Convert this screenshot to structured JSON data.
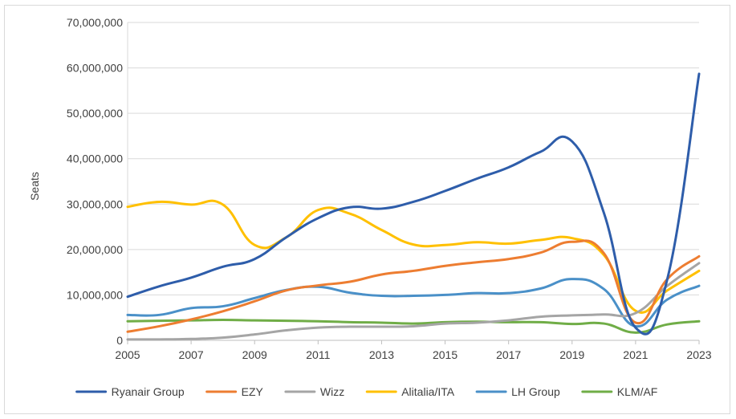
{
  "chart_data": {
    "type": "line",
    "title": "",
    "xlabel": "",
    "ylabel": "Seats",
    "x_tick_labels": [
      "2005",
      "2007",
      "2009",
      "2011",
      "2013",
      "2015",
      "2017",
      "2019",
      "2021",
      "2023"
    ],
    "y_tick_labels": [
      "0",
      "10,000,000",
      "20,000,000",
      "30,000,000",
      "40,000,000",
      "50,000,000",
      "60,000,000",
      "70,000,000"
    ],
    "xlim": [
      2005,
      2023
    ],
    "ylim": [
      0,
      70000000
    ],
    "grid": "horizontal",
    "legend_position": "bottom",
    "x": [
      2005,
      2006,
      2007,
      2008,
      2009,
      2010,
      2011,
      2012,
      2013,
      2014,
      2015,
      2016,
      2017,
      2018,
      2019,
      2020,
      2021,
      2022,
      2023
    ],
    "series": [
      {
        "name": "Ryanair Group",
        "color": "#2E5DAA",
        "values": [
          9600000,
          11900000,
          13800000,
          16200000,
          17900000,
          22700000,
          26900000,
          29300000,
          29000000,
          30500000,
          32900000,
          35600000,
          38100000,
          41500000,
          43800000,
          28100000,
          2800000,
          13500000,
          58700000
        ]
      },
      {
        "name": "EZY",
        "color": "#ED7D31",
        "values": [
          1900000,
          3100000,
          4600000,
          6400000,
          8600000,
          11000000,
          12100000,
          12900000,
          14500000,
          15300000,
          16400000,
          17200000,
          17900000,
          19300000,
          21700000,
          19200000,
          3900000,
          13500000,
          18500000
        ]
      },
      {
        "name": "Wizz",
        "color": "#A5A5A5",
        "values": [
          200000,
          200000,
          300000,
          600000,
          1300000,
          2200000,
          2800000,
          3000000,
          3000000,
          3100000,
          3700000,
          3900000,
          4400000,
          5200000,
          5500000,
          5700000,
          6000000,
          12000000,
          17000000
        ]
      },
      {
        "name": "Alitalia/ITA",
        "color": "#FFC000",
        "values": [
          29400000,
          30500000,
          29900000,
          29900000,
          21000000,
          22700000,
          28700000,
          27900000,
          24300000,
          21100000,
          21000000,
          21600000,
          21300000,
          22100000,
          22500000,
          18800000,
          6500000,
          11000000,
          15300000
        ]
      },
      {
        "name": "LH Group",
        "color": "#4A90C8",
        "values": [
          5600000,
          5600000,
          7100000,
          7500000,
          9300000,
          11100000,
          11800000,
          10500000,
          9800000,
          9800000,
          10000000,
          10400000,
          10400000,
          11400000,
          13500000,
          11300000,
          3100000,
          9000000,
          12000000
        ]
      },
      {
        "name": "KLM/AF",
        "color": "#70AD47",
        "values": [
          4200000,
          4300000,
          4400000,
          4500000,
          4400000,
          4300000,
          4200000,
          4000000,
          3900000,
          3700000,
          4000000,
          4100000,
          4000000,
          4000000,
          3600000,
          3700000,
          1700000,
          3500000,
          4200000
        ]
      }
    ]
  }
}
